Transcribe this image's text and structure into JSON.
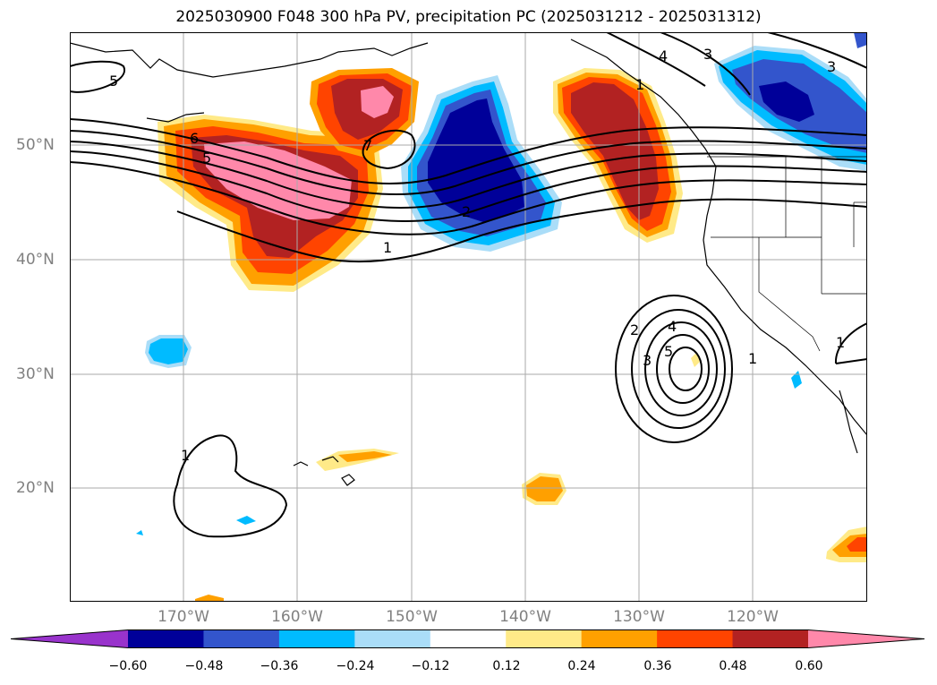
{
  "title": "2025030900 F048 300 hPa PV, precipitation PC (2025031212 - 2025031312)",
  "map": {
    "extent": {
      "lon_min": -180,
      "lon_max": -110,
      "lat_min": 10,
      "lat_max": 60
    },
    "lat_ticks": [
      "50°N",
      "40°N",
      "30°N",
      "20°N"
    ],
    "lon_ticks": [
      "170°W",
      "160°W",
      "150°W",
      "140°W",
      "130°W",
      "120°W"
    ],
    "contour_labels": [
      "5",
      "6",
      "5",
      "7",
      "2",
      "1",
      "4",
      "3",
      "3",
      "1",
      "2",
      "3",
      "4",
      "5",
      "1",
      "1",
      "1"
    ]
  },
  "colorbar": {
    "ticks": [
      "−0.60",
      "−0.48",
      "−0.36",
      "−0.24",
      "−0.12",
      "0.12",
      "0.24",
      "0.36",
      "0.48",
      "0.60"
    ],
    "colors": [
      "#9933cc",
      "#000099",
      "#3355cc",
      "#00bbff",
      "#aaddf8",
      "#ffffff",
      "#ffea88",
      "#ffa000",
      "#ff4400",
      "#b22222",
      "#ff88aa"
    ],
    "extend": "both"
  }
}
